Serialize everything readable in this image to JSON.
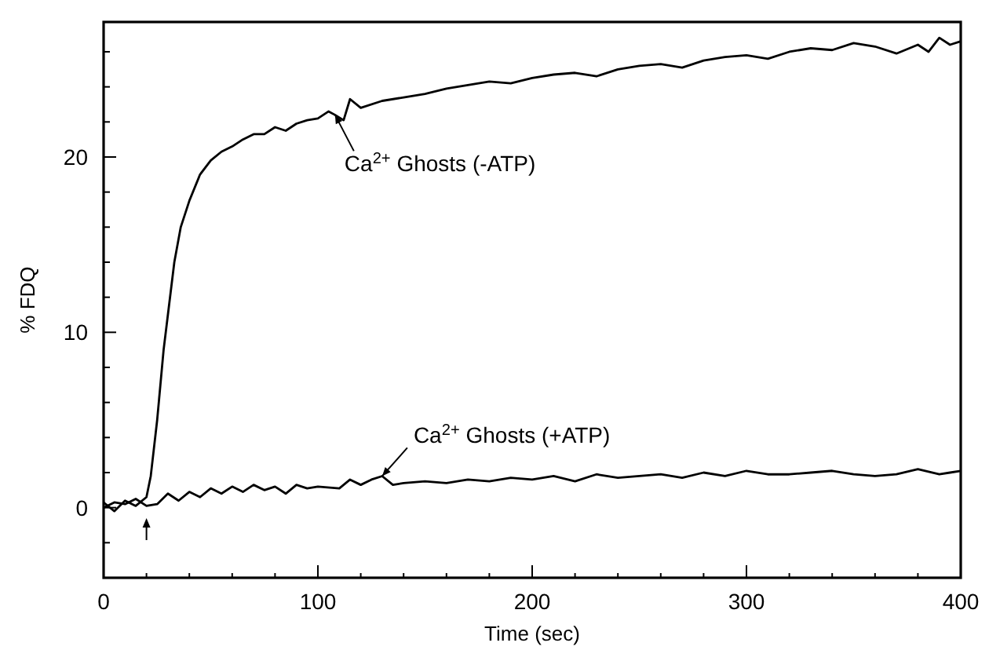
{
  "chart_data": {
    "type": "line",
    "xlabel": "Time (sec)",
    "ylabel": "% FDQ",
    "xlim": [
      0,
      400
    ],
    "ylim": [
      -4,
      27.7
    ],
    "xticks": [
      0,
      {
        "value": 20,
        "label": null
      },
      {
        "value": 40,
        "label": null
      },
      {
        "value": 60,
        "label": null
      },
      {
        "value": 80,
        "label": null
      },
      100,
      {
        "value": 120,
        "label": null
      },
      {
        "value": 140,
        "label": null
      },
      {
        "value": 160,
        "label": null
      },
      {
        "value": 180,
        "label": null
      },
      200,
      {
        "value": 220,
        "label": null
      },
      {
        "value": 240,
        "label": null
      },
      {
        "value": 260,
        "label": null
      },
      {
        "value": 280,
        "label": null
      },
      300,
      {
        "value": 320,
        "label": null
      },
      {
        "value": 340,
        "label": null
      },
      {
        "value": 360,
        "label": null
      },
      {
        "value": 380,
        "label": null
      },
      400
    ],
    "yticks": [
      {
        "value": -2,
        "label": null
      },
      0,
      {
        "value": 2,
        "label": null
      },
      {
        "value": 4,
        "label": null
      },
      {
        "value": 6,
        "label": null
      },
      {
        "value": 8,
        "label": null
      },
      10,
      {
        "value": 12,
        "label": null
      },
      {
        "value": 14,
        "label": null
      },
      {
        "value": 16,
        "label": null
      },
      {
        "value": 18,
        "label": null
      },
      20,
      {
        "value": 22,
        "label": null
      },
      {
        "value": 24,
        "label": null
      },
      {
        "value": 26,
        "label": null
      }
    ],
    "grid": false,
    "marker": "none",
    "line_style": "solid",
    "series": [
      {
        "color": "#000000",
        "x": [
          0,
          5,
          10,
          15,
          20,
          22,
          25,
          28,
          30,
          33,
          36,
          40,
          45,
          50,
          55,
          60,
          65,
          70,
          75,
          80,
          85,
          90,
          95,
          100,
          105,
          108,
          112,
          115,
          120,
          130,
          140,
          150,
          160,
          170,
          180,
          190,
          200,
          210,
          220,
          230,
          240,
          250,
          260,
          270,
          280,
          290,
          300,
          310,
          320,
          330,
          340,
          350,
          360,
          370,
          380,
          385,
          390,
          395,
          400
        ],
        "values": [
          0.3,
          -0.2,
          0.4,
          0.1,
          0.6,
          1.8,
          5,
          9,
          11,
          14,
          16,
          17.5,
          19,
          19.8,
          20.3,
          20.6,
          21,
          21.3,
          21.3,
          21.7,
          21.5,
          21.9,
          22.1,
          22.2,
          22.6,
          22.4,
          22.1,
          23.3,
          22.8,
          23.2,
          23.4,
          23.6,
          23.9,
          24.1,
          24.3,
          24.2,
          24.5,
          24.7,
          24.8,
          24.6,
          25.0,
          25.2,
          25.3,
          25.1,
          25.5,
          25.7,
          25.8,
          25.6,
          26.0,
          26.2,
          26.1,
          26.5,
          26.3,
          25.9,
          26.4,
          26.0,
          26.8,
          26.4,
          26.6
        ]
      },
      {
        "color": "#000000",
        "x": [
          0,
          5,
          10,
          15,
          20,
          25,
          30,
          35,
          40,
          45,
          50,
          55,
          60,
          65,
          70,
          75,
          80,
          85,
          90,
          95,
          100,
          110,
          115,
          120,
          125,
          130,
          135,
          140,
          150,
          160,
          170,
          180,
          190,
          200,
          210,
          220,
          230,
          240,
          250,
          260,
          270,
          280,
          290,
          300,
          310,
          320,
          330,
          340,
          350,
          360,
          370,
          380,
          390,
          395,
          400
        ],
        "values": [
          0,
          0.3,
          0.2,
          0.5,
          0.1,
          0.2,
          0.8,
          0.4,
          0.9,
          0.6,
          1.1,
          0.8,
          1.2,
          0.9,
          1.3,
          1.0,
          1.2,
          0.8,
          1.3,
          1.1,
          1.2,
          1.1,
          1.6,
          1.3,
          1.6,
          1.8,
          1.3,
          1.4,
          1.5,
          1.4,
          1.6,
          1.5,
          1.7,
          1.6,
          1.8,
          1.5,
          1.9,
          1.7,
          1.8,
          1.9,
          1.7,
          2.0,
          1.8,
          2.1,
          1.9,
          1.9,
          2.0,
          2.1,
          1.9,
          1.8,
          1.9,
          2.2,
          1.9,
          2.0,
          2.1
        ]
      }
    ],
    "annotations": [
      {
        "text": "Ca$^{2+}$ Ghosts (-ATP)",
        "x": 108,
        "y": 22.4
      },
      {
        "text": "Ca$^{2+}$ Ghosts (+ATP)",
        "x": 130,
        "y": 1.8
      }
    ]
  }
}
